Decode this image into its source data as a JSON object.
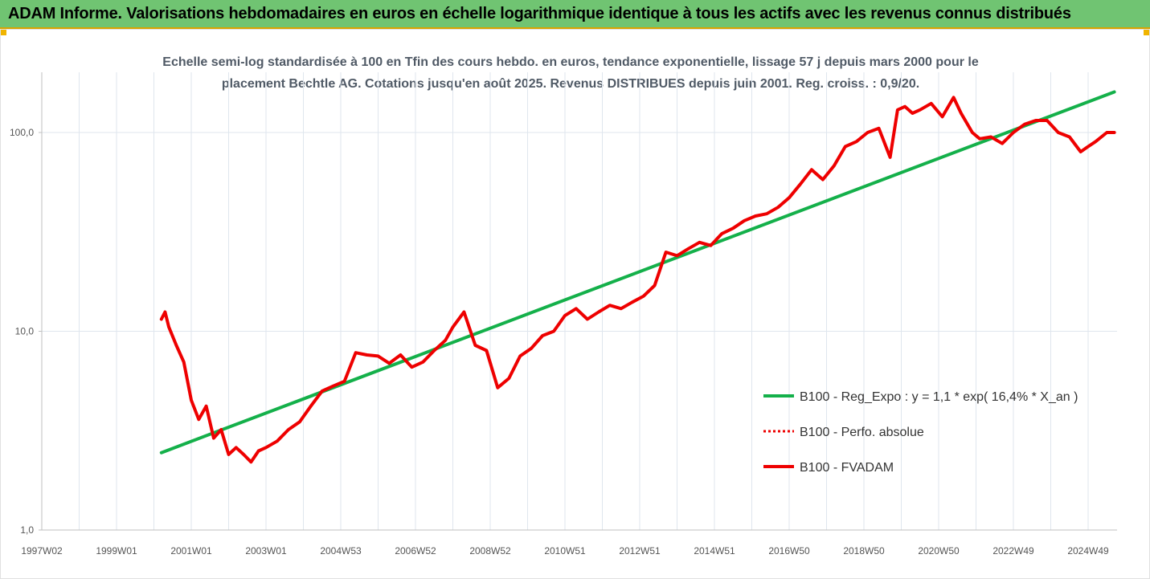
{
  "banner": {
    "title": "ADAM Informe. Valorisations hebdomadaires en euros en échelle logarithmique identique à tous les actifs avec les revenus connus distribués"
  },
  "chart_data": {
    "type": "line",
    "title": "Echelle semi-log standardisée à 100 en Tfin des cours hebdo. en euros, tendance exponentielle, lissage 57 j depuis mars 2000 pour le placement Bechtle AG. Cotations jusqu'en août 2025. Revenus DISTRIBUES depuis juin 2001. Reg. croiss. : 0,9/20.",
    "y_scale": "log",
    "ylim": [
      1,
      200
    ],
    "y_ticks": [
      {
        "value": 1,
        "label": "1,0"
      },
      {
        "value": 10,
        "label": "10,0"
      },
      {
        "value": 100,
        "label": "100,0"
      }
    ],
    "x_range": [
      1997.0,
      2025.7
    ],
    "x_ticks": [
      {
        "value": 1997.0,
        "label": "1997W02"
      },
      {
        "value": 1999.0,
        "label": "1999W01"
      },
      {
        "value": 2001.0,
        "label": "2001W01"
      },
      {
        "value": 2003.0,
        "label": "2003W01"
      },
      {
        "value": 2005.0,
        "label": "2004W53"
      },
      {
        "value": 2007.0,
        "label": "2006W52"
      },
      {
        "value": 2009.0,
        "label": "2008W52"
      },
      {
        "value": 2011.0,
        "label": "2010W51"
      },
      {
        "value": 2013.0,
        "label": "2012W51"
      },
      {
        "value": 2015.0,
        "label": "2014W51"
      },
      {
        "value": 2017.0,
        "label": "2016W50"
      },
      {
        "value": 2019.0,
        "label": "2018W50"
      },
      {
        "value": 2021.0,
        "label": "2020W50"
      },
      {
        "value": 2023.0,
        "label": "2022W49"
      },
      {
        "value": 2025.0,
        "label": "2024W49"
      }
    ],
    "grid": "vertical",
    "legend_position": "right",
    "series": [
      {
        "name": "B100 - Reg_Expo : y = 1,1 * exp( 16,4% *  X_an )",
        "color": "#14b04a",
        "style": "solid",
        "x": [
          2000.2,
          2025.7
        ],
        "y": [
          2.45,
          160
        ]
      },
      {
        "name": "B100 - Perfo. absolue",
        "color": "#ee0000",
        "style": "dotted",
        "x": [],
        "y": []
      },
      {
        "name": "B100 - FVADAM",
        "color": "#ee0000",
        "style": "solid",
        "x": [
          2000.2,
          2000.3,
          2000.4,
          2000.6,
          2000.8,
          2001.0,
          2001.2,
          2001.4,
          2001.6,
          2001.8,
          2002.0,
          2002.2,
          2002.4,
          2002.6,
          2002.8,
          2003.0,
          2003.3,
          2003.6,
          2003.9,
          2004.2,
          2004.5,
          2004.8,
          2005.1,
          2005.4,
          2005.7,
          2006.0,
          2006.3,
          2006.6,
          2006.9,
          2007.2,
          2007.5,
          2007.8,
          2008.0,
          2008.3,
          2008.6,
          2008.9,
          2009.2,
          2009.5,
          2009.8,
          2010.1,
          2010.4,
          2010.7,
          2011.0,
          2011.3,
          2011.6,
          2011.9,
          2012.2,
          2012.5,
          2012.8,
          2013.1,
          2013.4,
          2013.7,
          2014.0,
          2014.3,
          2014.6,
          2014.9,
          2015.2,
          2015.5,
          2015.8,
          2016.1,
          2016.4,
          2016.7,
          2017.0,
          2017.3,
          2017.6,
          2017.9,
          2018.2,
          2018.5,
          2018.8,
          2019.1,
          2019.4,
          2019.7,
          2019.9,
          2020.1,
          2020.3,
          2020.5,
          2020.8,
          2021.1,
          2021.4,
          2021.6,
          2021.9,
          2022.1,
          2022.4,
          2022.7,
          2023.0,
          2023.3,
          2023.6,
          2023.9,
          2024.2,
          2024.5,
          2024.8,
          2025.0,
          2025.2,
          2025.5,
          2025.7
        ],
        "y": [
          11.5,
          12.5,
          10.5,
          8.5,
          7.0,
          4.5,
          3.6,
          4.2,
          2.9,
          3.2,
          2.4,
          2.6,
          2.4,
          2.2,
          2.5,
          2.6,
          2.8,
          3.2,
          3.5,
          4.2,
          5.0,
          5.3,
          5.6,
          7.8,
          7.6,
          7.5,
          6.9,
          7.6,
          6.6,
          7.0,
          8.0,
          9.0,
          10.5,
          12.5,
          8.5,
          8.0,
          5.2,
          5.8,
          7.5,
          8.2,
          9.5,
          10.0,
          12.0,
          13.0,
          11.5,
          12.5,
          13.5,
          13.0,
          14.0,
          15.0,
          17.0,
          25.0,
          24.0,
          26.0,
          28.0,
          27.0,
          31.0,
          33.0,
          36.0,
          38.0,
          39.0,
          42.0,
          47.0,
          55.0,
          65.0,
          58.0,
          68.0,
          85.0,
          90.0,
          100.0,
          105.0,
          75.0,
          130.0,
          135.0,
          125.0,
          130.0,
          140.0,
          120.0,
          150.0,
          125.0,
          100.0,
          93.0,
          95.0,
          88.0,
          100.0,
          110.0,
          115.0,
          115.0,
          100.0,
          95.0,
          80.0,
          85.0,
          90.0,
          100.0,
          100.0
        ]
      }
    ]
  }
}
